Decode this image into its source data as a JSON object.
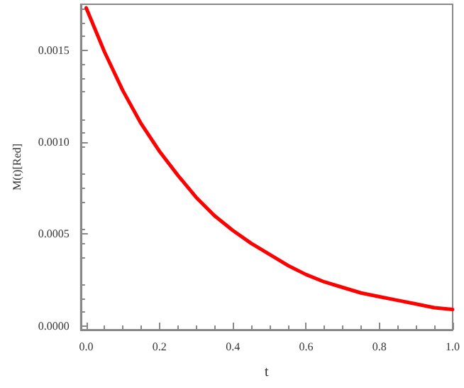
{
  "chart_data": {
    "type": "line",
    "xlabel": "t",
    "ylabel": "M(t)[Red]",
    "x": [
      0,
      0.05,
      0.1,
      0.15,
      0.2,
      0.25,
      0.3,
      0.35,
      0.4,
      0.45,
      0.5,
      0.55,
      0.6,
      0.65,
      0.7,
      0.75,
      0.8,
      0.85,
      0.9,
      0.95,
      1.0
    ],
    "series": [
      {
        "color": "#ff0000",
        "values": [
          0.00173,
          0.00149,
          0.00128,
          0.0011,
          0.00095,
          0.00082,
          0.0007,
          0.0006,
          0.00052,
          0.00045,
          0.00039,
          0.00033,
          0.00028,
          0.00024,
          0.00021,
          0.00018,
          0.00016,
          0.00014,
          0.00012,
          0.0001,
          9e-05
        ]
      }
    ],
    "xlim": [
      -0.015,
      1.0
    ],
    "ylim": [
      -2e-05,
      0.00175
    ],
    "xticks": [
      {
        "value": 0,
        "label": "0.0"
      },
      {
        "value": 0.2,
        "label": "0.2"
      },
      {
        "value": 0.4,
        "label": "0.4"
      },
      {
        "value": 0.6,
        "label": "0.6"
      },
      {
        "value": 0.8,
        "label": "0.8"
      },
      {
        "value": 1.0,
        "label": "1.0"
      }
    ],
    "yticks": [
      {
        "value": 0,
        "label": "0.0000"
      },
      {
        "value": 0.0005,
        "label": "0.0005"
      },
      {
        "value": 0.001,
        "label": "0.0010"
      },
      {
        "value": 0.0015,
        "label": "0.0015"
      }
    ],
    "grid": false,
    "marker": "none",
    "line_style": "solid"
  }
}
